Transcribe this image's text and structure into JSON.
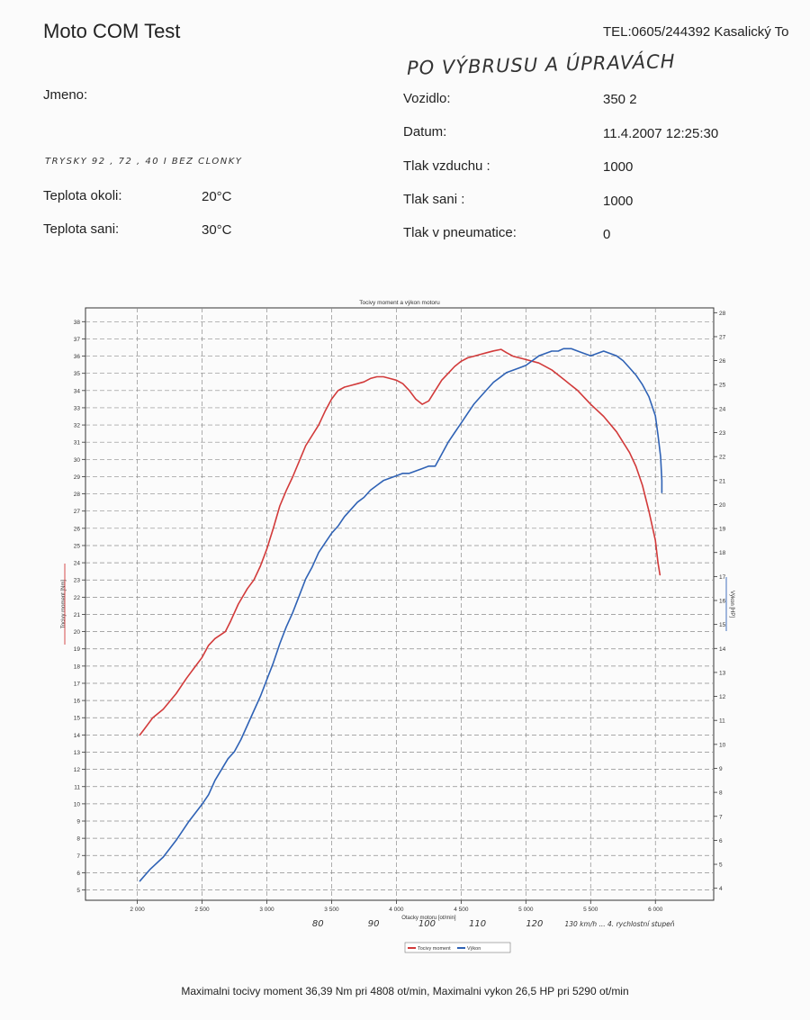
{
  "header": {
    "title": "Moto COM Test",
    "tel": "TEL:0605/244392  Kasalický To",
    "handwritten_title": "PO VÝBRUSU A ÚPRAVÁCH",
    "handwritten_note": "TRYSKY 92 , 72 , 40  I BEZ CLONKY"
  },
  "form": {
    "jmeno_label": "Jmeno:",
    "teplota_okoli_label": "Teplota okoli:",
    "teplota_okoli_value": "20°C",
    "teplota_sani_label": "Teplota sani:",
    "teplota_sani_value": "30°C",
    "vozidlo_label": "Vozidlo:",
    "vozidlo_value": "350  2",
    "datum_label": "Datum:",
    "datum_value": "11.4.2007 12:25:30",
    "tlak_vzduchu_label": "Tlak vzduchu :",
    "tlak_vzduchu_value": "1000",
    "tlak_sani_label": "Tlak sani :",
    "tlak_sani_value": "1000",
    "tlak_pneu_label": "Tlak v pneumatice:",
    "tlak_pneu_value": "0"
  },
  "chart_data": {
    "type": "line",
    "title": "Tocivy moment a výkon motoru",
    "xlabel": "Otacky motoru [ot/min]",
    "ylabel": "Tocivy moment [Nm]",
    "y2label": "Výkon [HP]",
    "xlim": [
      1600,
      6450
    ],
    "ylim": [
      4.4,
      38.8
    ],
    "y2lim": [
      3.5,
      28.2
    ],
    "x_ticks": [
      2000,
      2500,
      3000,
      3500,
      4000,
      4500,
      5000,
      5500,
      6000
    ],
    "x_tick_labels": [
      "2 000",
      "2 500",
      "3 000",
      "3 500",
      "4 000",
      "4 500",
      "5 000",
      "5 500",
      "6 000"
    ],
    "y_ticks": [
      5,
      6,
      7,
      8,
      9,
      10,
      11,
      12,
      13,
      14,
      15,
      16,
      17,
      18,
      19,
      20,
      21,
      22,
      23,
      24,
      25,
      26,
      27,
      28,
      29,
      30,
      31,
      32,
      33,
      34,
      35,
      36,
      37,
      38
    ],
    "y2_ticks": [
      4,
      5,
      6,
      7,
      8,
      9,
      10,
      11,
      12,
      13,
      14,
      15,
      16,
      17,
      18,
      19,
      20,
      21,
      22,
      23,
      24,
      25,
      26,
      27,
      28
    ],
    "grid": true,
    "legend_position": "bottom",
    "series": [
      {
        "name": "Tocivy moment",
        "axis": "left",
        "color": "#d23a3a",
        "x": [
          2020,
          2050,
          2120,
          2200,
          2300,
          2380,
          2450,
          2500,
          2550,
          2600,
          2680,
          2720,
          2780,
          2850,
          2900,
          2950,
          3000,
          3050,
          3100,
          3150,
          3200,
          3300,
          3400,
          3450,
          3500,
          3550,
          3600,
          3650,
          3700,
          3750,
          3800,
          3850,
          3900,
          3950,
          4000,
          4050,
          4100,
          4150,
          4200,
          4250,
          4300,
          4350,
          4400,
          4450,
          4500,
          4550,
          4600,
          4650,
          4700,
          4750,
          4808,
          4850,
          4900,
          4950,
          5000,
          5100,
          5200,
          5300,
          5400,
          5500,
          5600,
          5700,
          5800,
          5850,
          5900,
          5950,
          6000,
          6020,
          6035
        ],
        "values": [
          14.0,
          14.3,
          15.0,
          15.5,
          16.4,
          17.3,
          18.0,
          18.5,
          19.2,
          19.6,
          20.0,
          20.6,
          21.6,
          22.5,
          23.0,
          23.8,
          24.8,
          26.0,
          27.3,
          28.2,
          29.0,
          30.8,
          32.0,
          32.8,
          33.5,
          34.0,
          34.2,
          34.3,
          34.4,
          34.5,
          34.7,
          34.8,
          34.8,
          34.7,
          34.6,
          34.4,
          34.0,
          33.5,
          33.2,
          33.4,
          34.0,
          34.6,
          35.0,
          35.4,
          35.7,
          35.9,
          36.0,
          36.1,
          36.2,
          36.3,
          36.39,
          36.2,
          36.0,
          35.9,
          35.8,
          35.6,
          35.2,
          34.6,
          34.0,
          33.2,
          32.5,
          31.6,
          30.4,
          29.6,
          28.5,
          27.0,
          25.3,
          24.0,
          23.3
        ]
      },
      {
        "name": "Výkon",
        "axis": "right",
        "color": "#2f62b5",
        "x": [
          2020,
          2100,
          2200,
          2300,
          2400,
          2500,
          2550,
          2600,
          2700,
          2750,
          2800,
          2850,
          2900,
          2950,
          3000,
          3050,
          3100,
          3150,
          3200,
          3250,
          3300,
          3350,
          3400,
          3450,
          3500,
          3550,
          3600,
          3650,
          3700,
          3750,
          3800,
          3850,
          3900,
          3950,
          4000,
          4050,
          4100,
          4150,
          4200,
          4250,
          4300,
          4350,
          4400,
          4450,
          4500,
          4550,
          4600,
          4650,
          4700,
          4750,
          4800,
          4850,
          4900,
          4950,
          5000,
          5050,
          5100,
          5150,
          5200,
          5250,
          5290,
          5350,
          5400,
          5450,
          5500,
          5550,
          5600,
          5650,
          5700,
          5750,
          5800,
          5850,
          5900,
          5950,
          6000,
          6020,
          6040,
          6050,
          6050
        ],
        "values": [
          4.3,
          4.8,
          5.3,
          6.0,
          6.8,
          7.5,
          7.9,
          8.5,
          9.4,
          9.7,
          10.2,
          10.8,
          11.4,
          12.0,
          12.7,
          13.4,
          14.2,
          14.9,
          15.5,
          16.2,
          16.9,
          17.4,
          18.0,
          18.4,
          18.8,
          19.1,
          19.5,
          19.8,
          20.1,
          20.3,
          20.6,
          20.8,
          21.0,
          21.1,
          21.2,
          21.3,
          21.3,
          21.4,
          21.5,
          21.6,
          21.6,
          22.1,
          22.6,
          23.0,
          23.4,
          23.8,
          24.2,
          24.5,
          24.8,
          25.1,
          25.3,
          25.5,
          25.6,
          25.7,
          25.8,
          26.0,
          26.2,
          26.3,
          26.4,
          26.4,
          26.5,
          26.5,
          26.4,
          26.3,
          26.2,
          26.3,
          26.4,
          26.3,
          26.2,
          26.0,
          25.7,
          25.4,
          25.0,
          24.5,
          23.7,
          22.9,
          22.0,
          21.0,
          20.5
        ]
      }
    ],
    "handwritten_annotations": [
      "80",
      "90",
      "100",
      "110",
      "120",
      "130 km/h ... 4. rychlostní stupeň"
    ]
  },
  "footer": {
    "text": "Maximalni tocivy moment 36,39 Nm pri 4808 ot/min,  Maximalni vykon 26,5 HP pri 5290 ot/min"
  },
  "colors": {
    "torque": "#d23a3a",
    "power": "#2f62b5",
    "grid": "#8c8c8c",
    "axis": "#333333"
  }
}
